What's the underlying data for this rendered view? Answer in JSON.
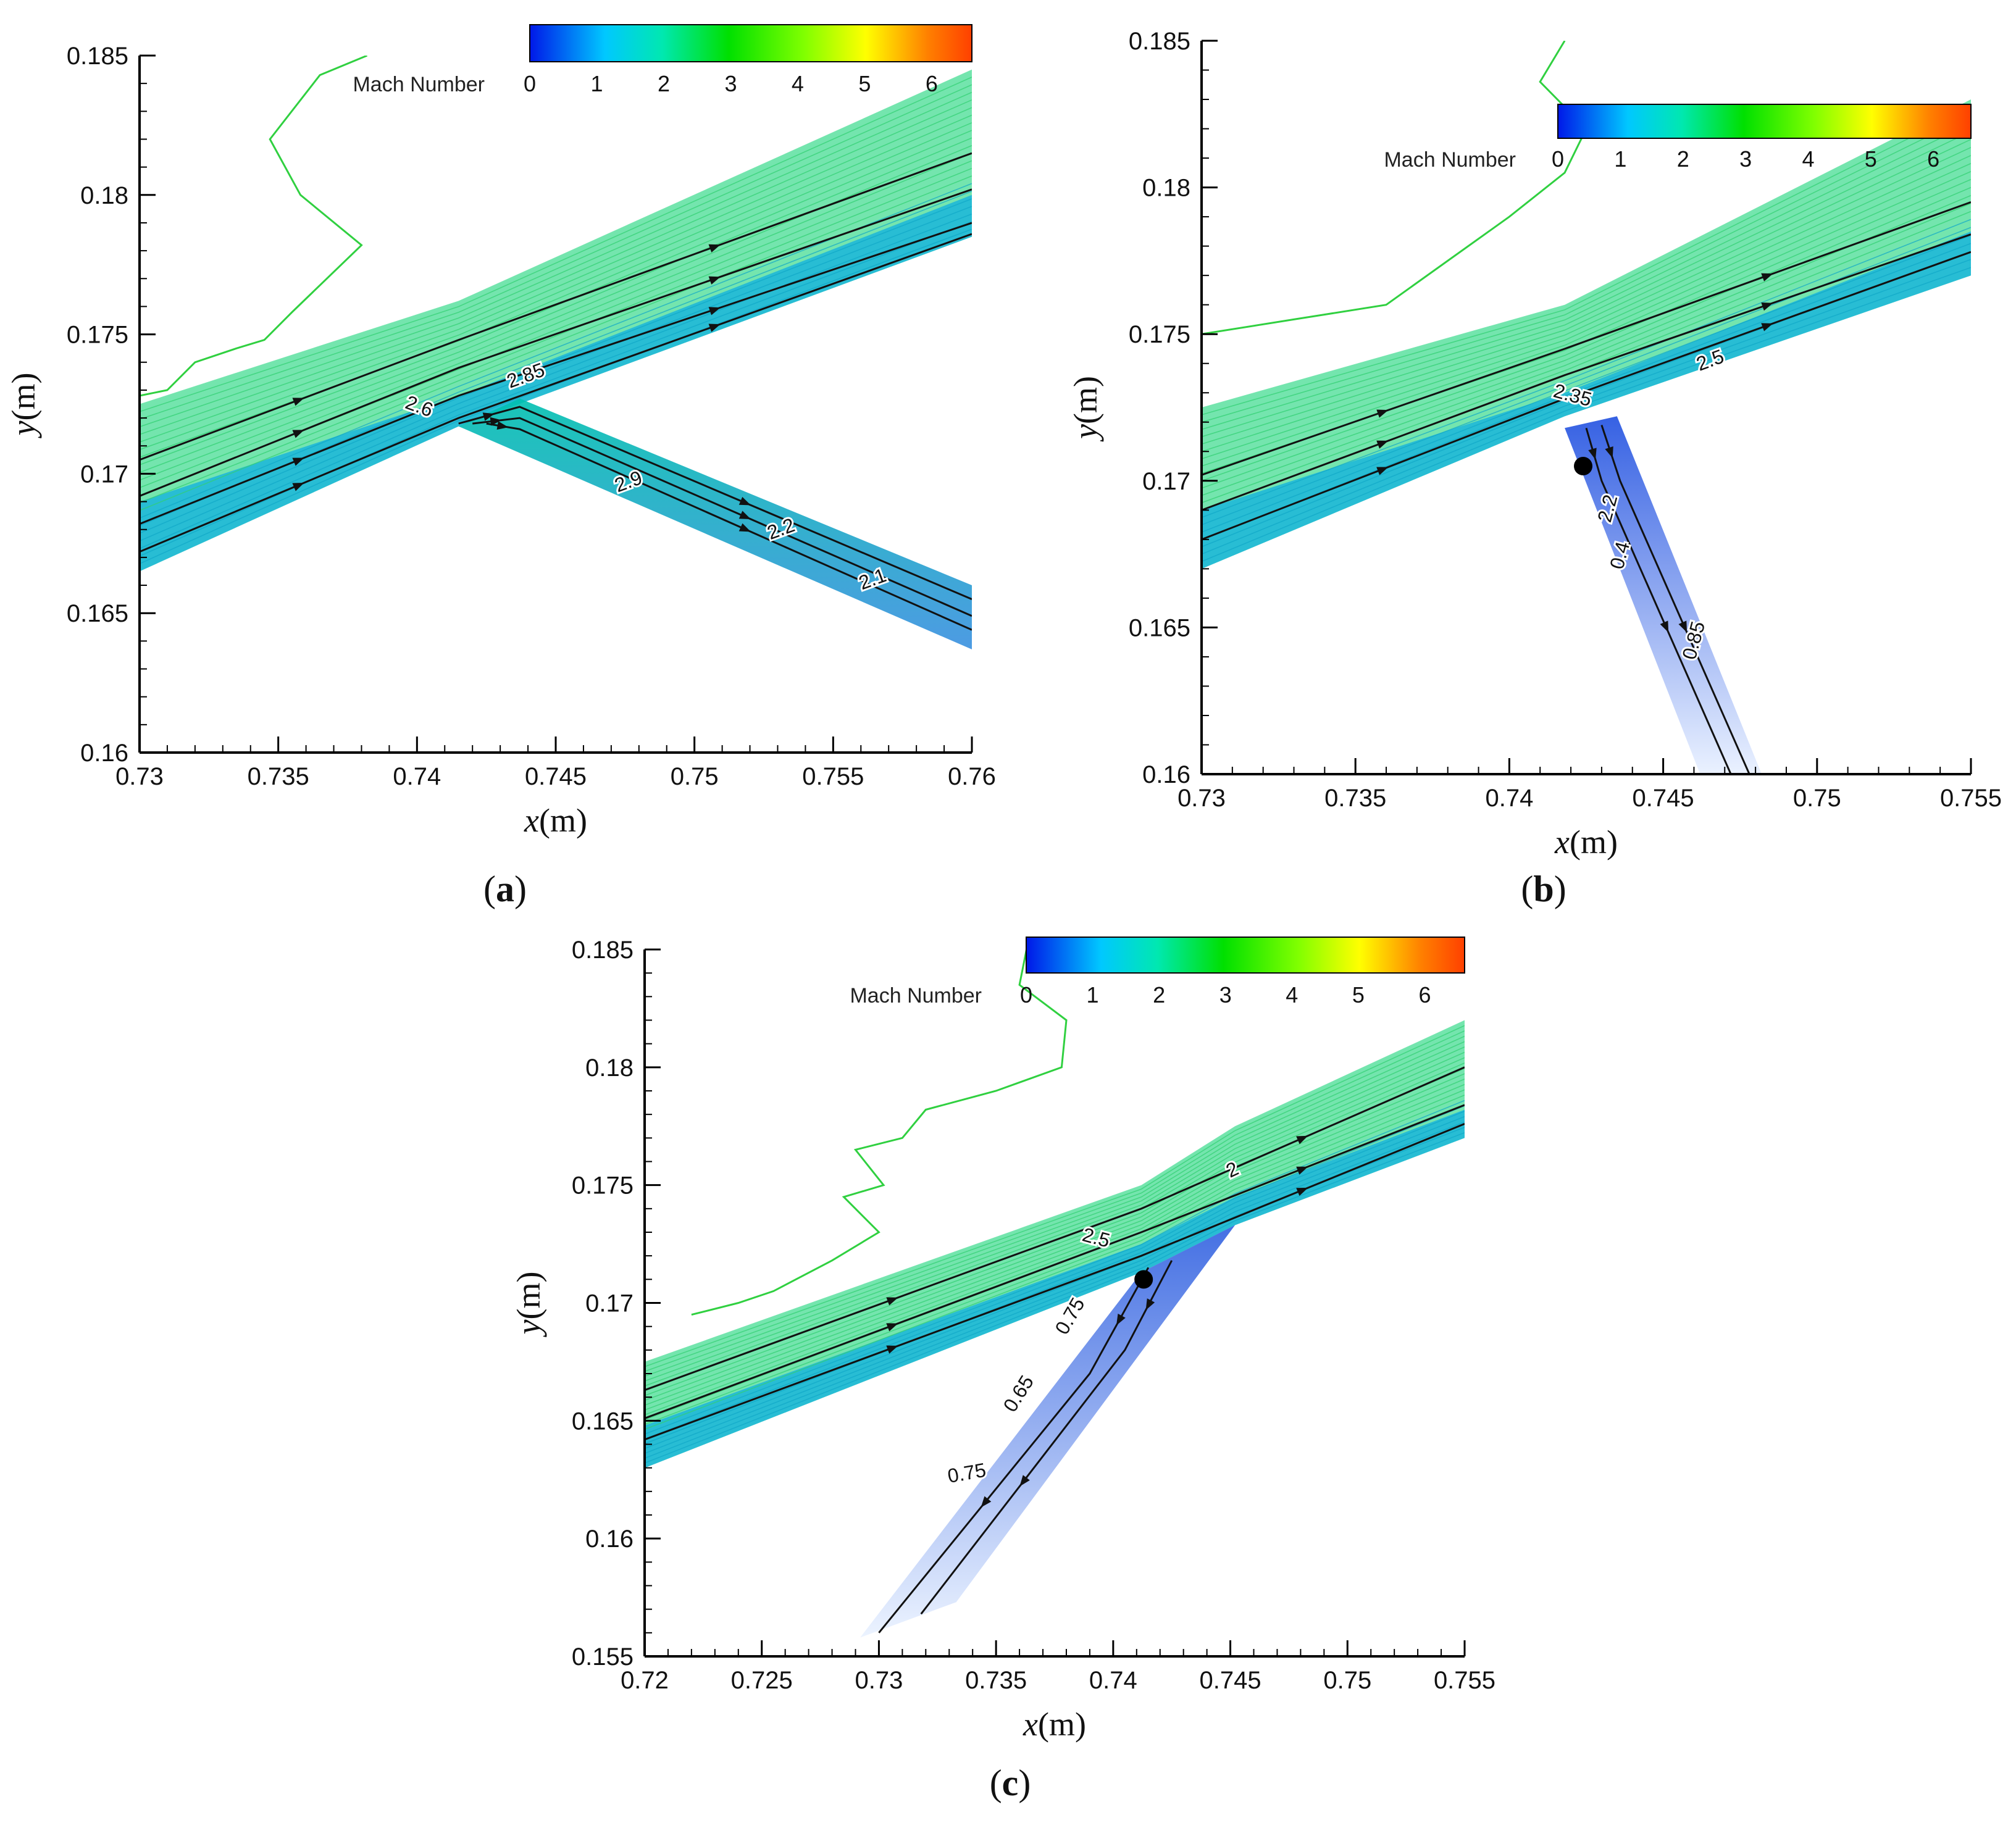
{
  "figure": {
    "colorbar": {
      "label": "Mach Number",
      "ticks": [
        "0",
        "1",
        "2",
        "3",
        "4",
        "5",
        "6"
      ],
      "range": [
        0,
        6.6
      ],
      "colors": [
        "#0018e8",
        "#00c8ff",
        "#00e8b0",
        "#00e000",
        "#80ff00",
        "#ffff00",
        "#ff8000",
        "#ff4000"
      ]
    },
    "panels": [
      {
        "id": "a",
        "tag_open": "(",
        "tag_letter": "a",
        "tag_close": ")",
        "xlabel_var": "x",
        "xlabel_unit": "(m)",
        "ylabel_var": "y",
        "ylabel_unit": "(m)",
        "x_ticks": [
          "0.73",
          "0.735",
          "0.74",
          "0.745",
          "0.75",
          "0.755",
          "0.76"
        ],
        "y_ticks": [
          "0.185",
          "0.18",
          "0.175",
          "0.17",
          "0.165",
          "0.16"
        ],
        "contour_labels": [
          "2.85",
          "2.6",
          "2.9",
          "2.2",
          "2.1"
        ]
      },
      {
        "id": "b",
        "tag_open": "(",
        "tag_letter": "b",
        "tag_close": ")",
        "xlabel_var": "x",
        "xlabel_unit": "(m)",
        "ylabel_var": "y",
        "ylabel_unit": "(m)",
        "x_ticks": [
          "0.73",
          "0.735",
          "0.74",
          "0.745",
          "0.75",
          "0.755"
        ],
        "y_ticks": [
          "0.185",
          "0.18",
          "0.175",
          "0.17",
          "0.165",
          "0.16"
        ],
        "contour_labels": [
          "2.5",
          "2.35",
          "2.2",
          "0.4",
          "0.85"
        ]
      },
      {
        "id": "c",
        "tag_open": "(",
        "tag_letter": "c",
        "tag_close": ")",
        "xlabel_var": "x",
        "xlabel_unit": "(m)",
        "ylabel_var": "y",
        "ylabel_unit": "(m)",
        "x_ticks": [
          "0.72",
          "0.725",
          "0.73",
          "0.735",
          "0.74",
          "0.745",
          "0.75",
          "0.755"
        ],
        "y_ticks": [
          "0.185",
          "0.18",
          "0.175",
          "0.17",
          "0.165",
          "0.16",
          "0.155"
        ],
        "contour_labels": [
          "2",
          "2.5",
          "0.75",
          "0.65",
          "0.75"
        ]
      }
    ]
  },
  "chart_data": [
    {
      "type": "heatmap",
      "panel": "a",
      "variable": "Mach Number",
      "xlim": [
        0.73,
        0.76
      ],
      "ylim": [
        0.16,
        0.185
      ],
      "xlabel": "x(m)",
      "ylabel": "y(m)",
      "contour_levels_labeled": [
        2.85,
        2.6,
        2.9,
        2.2,
        2.1
      ],
      "colorbar_range": [
        0,
        6.6
      ],
      "streamlines": true
    },
    {
      "type": "heatmap",
      "panel": "b",
      "variable": "Mach Number",
      "xlim": [
        0.73,
        0.755
      ],
      "ylim": [
        0.16,
        0.185
      ],
      "xlabel": "x(m)",
      "ylabel": "y(m)",
      "contour_levels_labeled": [
        2.5,
        2.35,
        2.2,
        0.4,
        0.85
      ],
      "colorbar_range": [
        0,
        6.6
      ],
      "streamlines": true
    },
    {
      "type": "heatmap",
      "panel": "c",
      "variable": "Mach Number",
      "xlim": [
        0.72,
        0.755
      ],
      "ylim": [
        0.155,
        0.185
      ],
      "xlabel": "x(m)",
      "ylabel": "y(m)",
      "contour_levels_labeled": [
        2,
        2.5,
        0.75,
        0.65,
        0.75
      ],
      "colorbar_range": [
        0,
        6.6
      ],
      "streamlines": true
    }
  ]
}
